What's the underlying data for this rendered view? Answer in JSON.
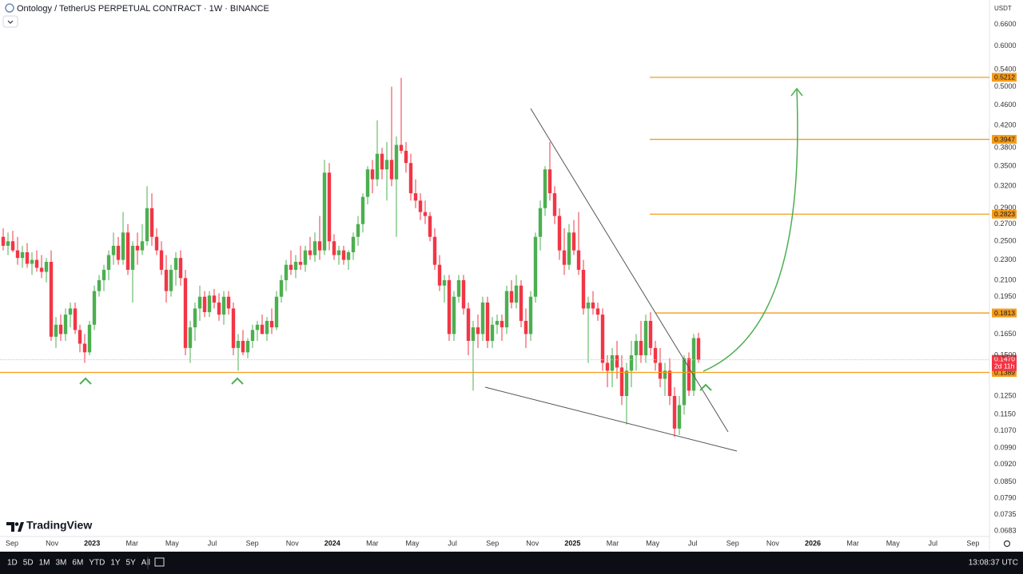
{
  "header": {
    "title": "Ontology / TetherUS PERPETUAL CONTRACT · 1W · BINANCE",
    "currency": "USDT",
    "brand": "TradingView"
  },
  "chart_data": {
    "type": "candlestick",
    "up_color": "#4caf50",
    "down_color": "#f23645",
    "log_scale": true,
    "ylim": [
      0.0666,
      0.737
    ],
    "yticks": [
      {
        "value": 0.66,
        "label": "0.6600"
      },
      {
        "value": 0.6,
        "label": "0.6000"
      },
      {
        "value": 0.54,
        "label": "0.5400"
      },
      {
        "value": 0.5,
        "label": "0.5000"
      },
      {
        "value": 0.46,
        "label": "0.4600"
      },
      {
        "value": 0.42,
        "label": "0.4200"
      },
      {
        "value": 0.38,
        "label": "0.3800"
      },
      {
        "value": 0.35,
        "label": "0.3500"
      },
      {
        "value": 0.32,
        "label": "0.3200"
      },
      {
        "value": 0.29,
        "label": "0.2900"
      },
      {
        "value": 0.27,
        "label": "0.2700"
      },
      {
        "value": 0.25,
        "label": "0.2500"
      },
      {
        "value": 0.23,
        "label": "0.2300"
      },
      {
        "value": 0.21,
        "label": "0.2100"
      },
      {
        "value": 0.195,
        "label": "0.1950"
      },
      {
        "value": 0.165,
        "label": "0.1650"
      },
      {
        "value": 0.15,
        "label": "0.1500"
      },
      {
        "value": 0.125,
        "label": "0.1250"
      },
      {
        "value": 0.115,
        "label": "0.1150"
      },
      {
        "value": 0.107,
        "label": "0.1070"
      },
      {
        "value": 0.099,
        "label": "0.0990"
      },
      {
        "value": 0.092,
        "label": "0.0920"
      },
      {
        "value": 0.085,
        "label": "0.0850"
      },
      {
        "value": 0.079,
        "label": "0.0790"
      },
      {
        "value": 0.0735,
        "label": "0.0735"
      },
      {
        "value": 0.0683,
        "label": "0.0683"
      }
    ],
    "x_labels": [
      "Sep",
      "Nov",
      "2023",
      "Mar",
      "May",
      "Jul",
      "Sep",
      "Nov",
      "2024",
      "Mar",
      "May",
      "Jul",
      "Sep",
      "Nov",
      "2025",
      "Mar",
      "May",
      "Jul",
      "Sep",
      "Nov",
      "2026",
      "Mar",
      "May",
      "Jul",
      "Sep"
    ],
    "candles": [
      [
        0.255,
        0.265,
        0.24,
        0.245
      ],
      [
        0.245,
        0.26,
        0.235,
        0.25
      ],
      [
        0.25,
        0.262,
        0.238,
        0.24
      ],
      [
        0.24,
        0.255,
        0.225,
        0.232
      ],
      [
        0.232,
        0.245,
        0.222,
        0.238
      ],
      [
        0.238,
        0.248,
        0.222,
        0.226
      ],
      [
        0.226,
        0.238,
        0.215,
        0.23
      ],
      [
        0.23,
        0.24,
        0.218,
        0.222
      ],
      [
        0.222,
        0.235,
        0.212,
        0.218
      ],
      [
        0.218,
        0.232,
        0.208,
        0.228
      ],
      [
        0.228,
        0.24,
        0.16,
        0.163
      ],
      [
        0.163,
        0.178,
        0.155,
        0.172
      ],
      [
        0.172,
        0.18,
        0.16,
        0.165
      ],
      [
        0.165,
        0.185,
        0.16,
        0.18
      ],
      [
        0.18,
        0.19,
        0.17,
        0.185
      ],
      [
        0.185,
        0.19,
        0.165,
        0.168
      ],
      [
        0.168,
        0.172,
        0.152,
        0.158
      ],
      [
        0.158,
        0.165,
        0.145,
        0.152
      ],
      [
        0.152,
        0.175,
        0.15,
        0.172
      ],
      [
        0.172,
        0.205,
        0.168,
        0.2
      ],
      [
        0.2,
        0.215,
        0.195,
        0.21
      ],
      [
        0.21,
        0.225,
        0.2,
        0.22
      ],
      [
        0.22,
        0.24,
        0.21,
        0.235
      ],
      [
        0.235,
        0.26,
        0.225,
        0.245
      ],
      [
        0.245,
        0.255,
        0.225,
        0.23
      ],
      [
        0.23,
        0.285,
        0.225,
        0.26
      ],
      [
        0.26,
        0.27,
        0.215,
        0.22
      ],
      [
        0.22,
        0.25,
        0.19,
        0.245
      ],
      [
        0.245,
        0.26,
        0.225,
        0.24
      ],
      [
        0.24,
        0.27,
        0.235,
        0.25
      ],
      [
        0.25,
        0.32,
        0.245,
        0.29
      ],
      [
        0.29,
        0.31,
        0.245,
        0.255
      ],
      [
        0.255,
        0.265,
        0.235,
        0.24
      ],
      [
        0.24,
        0.25,
        0.215,
        0.22
      ],
      [
        0.22,
        0.235,
        0.19,
        0.2
      ],
      [
        0.2,
        0.225,
        0.195,
        0.22
      ],
      [
        0.22,
        0.238,
        0.205,
        0.232
      ],
      [
        0.232,
        0.24,
        0.205,
        0.212
      ],
      [
        0.212,
        0.22,
        0.15,
        0.155
      ],
      [
        0.155,
        0.175,
        0.145,
        0.17
      ],
      [
        0.17,
        0.19,
        0.16,
        0.185
      ],
      [
        0.185,
        0.205,
        0.175,
        0.195
      ],
      [
        0.195,
        0.2,
        0.178,
        0.182
      ],
      [
        0.182,
        0.2,
        0.178,
        0.196
      ],
      [
        0.196,
        0.202,
        0.185,
        0.19
      ],
      [
        0.19,
        0.198,
        0.175,
        0.18
      ],
      [
        0.18,
        0.2,
        0.172,
        0.195
      ],
      [
        0.195,
        0.2,
        0.18,
        0.185
      ],
      [
        0.185,
        0.19,
        0.15,
        0.155
      ],
      [
        0.155,
        0.165,
        0.14,
        0.16
      ],
      [
        0.16,
        0.168,
        0.15,
        0.152
      ],
      [
        0.152,
        0.162,
        0.148,
        0.16
      ],
      [
        0.16,
        0.172,
        0.155,
        0.168
      ],
      [
        0.168,
        0.175,
        0.16,
        0.172
      ],
      [
        0.172,
        0.18,
        0.165,
        0.165
      ],
      [
        0.165,
        0.178,
        0.16,
        0.175
      ],
      [
        0.175,
        0.185,
        0.165,
        0.17
      ],
      [
        0.17,
        0.2,
        0.168,
        0.195
      ],
      [
        0.195,
        0.215,
        0.19,
        0.21
      ],
      [
        0.21,
        0.23,
        0.2,
        0.225
      ],
      [
        0.225,
        0.24,
        0.215,
        0.22
      ],
      [
        0.22,
        0.235,
        0.212,
        0.228
      ],
      [
        0.228,
        0.245,
        0.22,
        0.225
      ],
      [
        0.225,
        0.245,
        0.218,
        0.24
      ],
      [
        0.24,
        0.255,
        0.23,
        0.235
      ],
      [
        0.235,
        0.26,
        0.228,
        0.25
      ],
      [
        0.25,
        0.28,
        0.23,
        0.24
      ],
      [
        0.24,
        0.36,
        0.235,
        0.34
      ],
      [
        0.34,
        0.355,
        0.24,
        0.25
      ],
      [
        0.25,
        0.258,
        0.23,
        0.235
      ],
      [
        0.235,
        0.245,
        0.225,
        0.24
      ],
      [
        0.24,
        0.245,
        0.225,
        0.23
      ],
      [
        0.23,
        0.24,
        0.22,
        0.238
      ],
      [
        0.238,
        0.26,
        0.23,
        0.255
      ],
      [
        0.255,
        0.28,
        0.245,
        0.27
      ],
      [
        0.27,
        0.31,
        0.26,
        0.305
      ],
      [
        0.305,
        0.35,
        0.295,
        0.345
      ],
      [
        0.345,
        0.36,
        0.31,
        0.33
      ],
      [
        0.33,
        0.43,
        0.32,
        0.37
      ],
      [
        0.37,
        0.38,
        0.33,
        0.345
      ],
      [
        0.345,
        0.39,
        0.3,
        0.36
      ],
      [
        0.36,
        0.5,
        0.32,
        0.33
      ],
      [
        0.33,
        0.4,
        0.255,
        0.385
      ],
      [
        0.385,
        0.52,
        0.37,
        0.375
      ],
      [
        0.375,
        0.39,
        0.34,
        0.355
      ],
      [
        0.355,
        0.37,
        0.3,
        0.31
      ],
      [
        0.31,
        0.33,
        0.29,
        0.3
      ],
      [
        0.3,
        0.31,
        0.275,
        0.285
      ],
      [
        0.285,
        0.3,
        0.27,
        0.28
      ],
      [
        0.28,
        0.285,
        0.25,
        0.255
      ],
      [
        0.255,
        0.265,
        0.22,
        0.225
      ],
      [
        0.225,
        0.235,
        0.2,
        0.205
      ],
      [
        0.205,
        0.215,
        0.19,
        0.21
      ],
      [
        0.21,
        0.215,
        0.16,
        0.165
      ],
      [
        0.165,
        0.2,
        0.16,
        0.195
      ],
      [
        0.195,
        0.215,
        0.19,
        0.21
      ],
      [
        0.21,
        0.215,
        0.18,
        0.185
      ],
      [
        0.185,
        0.19,
        0.15,
        0.16
      ],
      [
        0.16,
        0.175,
        0.128,
        0.17
      ],
      [
        0.17,
        0.18,
        0.155,
        0.165
      ],
      [
        0.165,
        0.195,
        0.16,
        0.19
      ],
      [
        0.19,
        0.195,
        0.155,
        0.16
      ],
      [
        0.16,
        0.178,
        0.155,
        0.172
      ],
      [
        0.172,
        0.18,
        0.165,
        0.175
      ],
      [
        0.175,
        0.18,
        0.16,
        0.17
      ],
      [
        0.17,
        0.205,
        0.165,
        0.2
      ],
      [
        0.2,
        0.21,
        0.185,
        0.19
      ],
      [
        0.19,
        0.215,
        0.185,
        0.205
      ],
      [
        0.205,
        0.21,
        0.17,
        0.175
      ],
      [
        0.175,
        0.185,
        0.155,
        0.165
      ],
      [
        0.165,
        0.2,
        0.16,
        0.195
      ],
      [
        0.195,
        0.26,
        0.19,
        0.255
      ],
      [
        0.255,
        0.3,
        0.24,
        0.29
      ],
      [
        0.29,
        0.35,
        0.28,
        0.345
      ],
      [
        0.345,
        0.39,
        0.3,
        0.31
      ],
      [
        0.31,
        0.32,
        0.27,
        0.28
      ],
      [
        0.28,
        0.29,
        0.23,
        0.24
      ],
      [
        0.24,
        0.265,
        0.215,
        0.225
      ],
      [
        0.225,
        0.27,
        0.22,
        0.26
      ],
      [
        0.26,
        0.275,
        0.235,
        0.24
      ],
      [
        0.24,
        0.285,
        0.215,
        0.22
      ],
      [
        0.22,
        0.23,
        0.18,
        0.185
      ],
      [
        0.185,
        0.195,
        0.145,
        0.19
      ],
      [
        0.19,
        0.2,
        0.18,
        0.185
      ],
      [
        0.185,
        0.19,
        0.175,
        0.18
      ],
      [
        0.18,
        0.185,
        0.14,
        0.145
      ],
      [
        0.145,
        0.15,
        0.13,
        0.14
      ],
      [
        0.14,
        0.155,
        0.13,
        0.15
      ],
      [
        0.15,
        0.16,
        0.135,
        0.142
      ],
      [
        0.142,
        0.15,
        0.12,
        0.125
      ],
      [
        0.125,
        0.145,
        0.11,
        0.14
      ],
      [
        0.14,
        0.16,
        0.13,
        0.15
      ],
      [
        0.15,
        0.165,
        0.14,
        0.16
      ],
      [
        0.16,
        0.175,
        0.145,
        0.15
      ],
      [
        0.15,
        0.18,
        0.145,
        0.175
      ],
      [
        0.175,
        0.182,
        0.15,
        0.155
      ],
      [
        0.155,
        0.16,
        0.14,
        0.145
      ],
      [
        0.145,
        0.155,
        0.13,
        0.135
      ],
      [
        0.135,
        0.145,
        0.125,
        0.14
      ],
      [
        0.14,
        0.148,
        0.12,
        0.125
      ],
      [
        0.125,
        0.13,
        0.104,
        0.108
      ],
      [
        0.108,
        0.125,
        0.105,
        0.12
      ],
      [
        0.12,
        0.15,
        0.115,
        0.148
      ],
      [
        0.148,
        0.152,
        0.125,
        0.128
      ],
      [
        0.128,
        0.165,
        0.125,
        0.162
      ],
      [
        0.162,
        0.166,
        0.145,
        0.147
      ]
    ],
    "levels": {
      "values": [
        0.5212,
        0.3947,
        0.2823,
        0.1813,
        0.1389
      ],
      "color": "#f59c1a"
    },
    "last_price": {
      "value": 0.147,
      "label": "0.1470"
    },
    "countdown": "2d 11h"
  },
  "toolbar": {
    "ranges": [
      "1D",
      "5D",
      "1M",
      "3M",
      "6M",
      "YTD",
      "1Y",
      "5Y",
      "All"
    ],
    "clock": "13:08:37 UTC"
  }
}
